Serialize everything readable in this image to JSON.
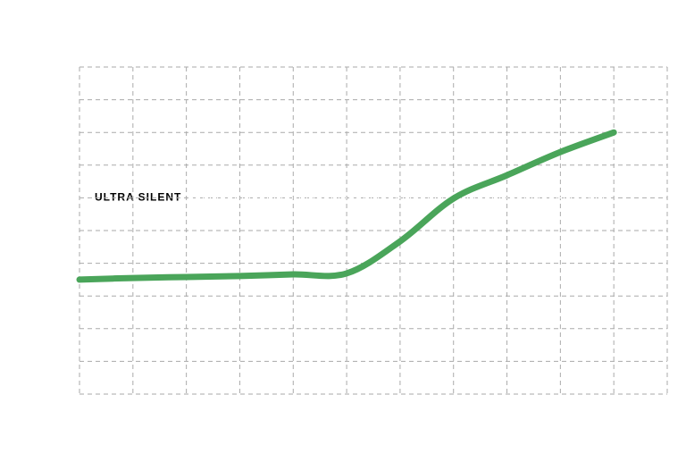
{
  "chart_data": {
    "type": "line",
    "x": [
      0,
      1,
      2,
      3,
      4,
      5,
      6,
      7,
      8,
      9,
      10
    ],
    "series": [
      {
        "color": "#4aa55a",
        "values": [
          3.5,
          3.55,
          3.58,
          3.61,
          3.66,
          3.69,
          4.67,
          5.98,
          6.69,
          7.4,
          8.0
        ]
      }
    ],
    "xlim": [
      0,
      11
    ],
    "ylim": [
      0,
      10
    ],
    "xticks": [
      0,
      1,
      2,
      3,
      4,
      5,
      6,
      7,
      8,
      9,
      10,
      11
    ],
    "yticks": [
      0,
      1,
      2,
      3,
      4,
      5,
      6,
      7,
      8,
      9,
      10
    ],
    "grid": true,
    "annotation": {
      "text": "ULTRA SILENT",
      "y": 6
    }
  }
}
